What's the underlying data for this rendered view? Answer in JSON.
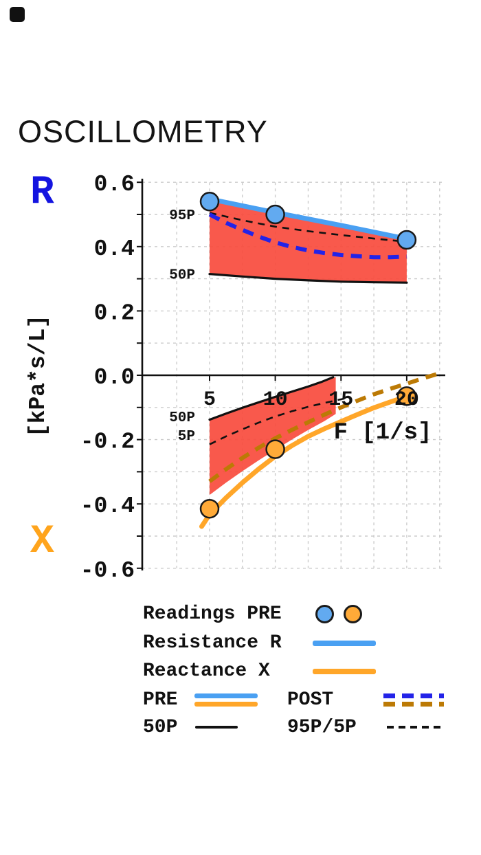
{
  "page": {
    "title": "OSCILLOMETRY"
  },
  "axes": {
    "r_label": "R",
    "x_label": "X",
    "y_unit_label": "[kPa*s/L]",
    "x_axis_label": "F [1/s]"
  },
  "colors": {
    "r_axis": "#1414e0",
    "x_axis": "#ffa41c",
    "r_pre": "#4aa0f2",
    "r_post": "#2323e8",
    "x_pre": "#ffa629",
    "x_post": "#bc7a05",
    "band": "#f94b3d",
    "normal_line": "#111111",
    "marker_r": "#62aaf0",
    "marker_x": "#ffaa38",
    "grid": "#cbcbcb"
  },
  "chart_data": {
    "type": "line",
    "title": "OSCILLOMETRY",
    "xlabel": "F [1/s]",
    "ylabel": "[kPa*s/L]",
    "xlim": [
      0,
      23.5
    ],
    "ylim": [
      -0.63,
      0.63
    ],
    "x_ticks": [
      5,
      10,
      15,
      20
    ],
    "x_tick_labels": [
      "5",
      "10",
      "15",
      "20"
    ],
    "y_ticks": [
      0.6,
      0.4,
      0.2,
      0.0,
      -0.2,
      -0.4,
      -0.6
    ],
    "y_tick_labels": [
      "0.6",
      "0.4",
      "0.2",
      "0.0",
      "-0.2",
      "-0.4",
      "-0.6"
    ],
    "grid": {
      "x_start": 2.5,
      "x_end": 22.5,
      "x_step": 2.5,
      "y_start": -0.6,
      "y_end": 0.6,
      "y_step": 0.1
    },
    "marker_radius": 13,
    "series": [
      {
        "id": "r-50p-line",
        "name": "R 50P predicted",
        "color_key": "normal_line",
        "width": 3.2,
        "points": [
          [
            5,
            0.315
          ],
          [
            7.5,
            0.307
          ],
          [
            10,
            0.3
          ],
          [
            12.5,
            0.295
          ],
          [
            15,
            0.291
          ],
          [
            17.5,
            0.289
          ],
          [
            20,
            0.288
          ]
        ]
      },
      {
        "id": "r-95p-line",
        "name": "R 95P predicted",
        "color_key": "normal_line",
        "width": 2.6,
        "dash": "10 8",
        "points": [
          [
            5,
            0.505
          ],
          [
            7.5,
            0.482
          ],
          [
            10,
            0.462
          ],
          [
            12.5,
            0.448
          ],
          [
            15,
            0.436
          ],
          [
            17.5,
            0.425
          ],
          [
            20,
            0.415
          ]
        ]
      },
      {
        "id": "x-50p-line",
        "name": "X 50P predicted",
        "color_key": "normal_line",
        "width": 3.2,
        "points": [
          [
            5,
            -0.138
          ],
          [
            6.25,
            -0.119
          ],
          [
            7.5,
            -0.101
          ],
          [
            8.75,
            -0.084
          ],
          [
            10,
            -0.067
          ],
          [
            11.25,
            -0.051
          ],
          [
            12.5,
            -0.035
          ],
          [
            13.5,
            -0.021
          ],
          [
            14.4,
            -0.006
          ]
        ]
      },
      {
        "id": "x-5p-line",
        "name": "X 5P predicted",
        "color_key": "normal_line",
        "width": 2.6,
        "dash": "10 8",
        "points": [
          [
            5,
            -0.215
          ],
          [
            6.25,
            -0.19
          ],
          [
            7.5,
            -0.168
          ],
          [
            8.75,
            -0.147
          ],
          [
            10,
            -0.128
          ],
          [
            11.25,
            -0.112
          ],
          [
            12.5,
            -0.098
          ],
          [
            13.75,
            -0.086
          ],
          [
            15.3,
            -0.072
          ]
        ]
      },
      {
        "id": "r-pre-line",
        "name": "Resistance R PRE",
        "color_key": "r_pre",
        "width": 7,
        "points": [
          [
            5,
            0.548
          ],
          [
            7.5,
            0.527
          ],
          [
            10,
            0.506
          ],
          [
            12.5,
            0.486
          ],
          [
            15,
            0.466
          ],
          [
            17.5,
            0.445
          ],
          [
            20,
            0.424
          ]
        ]
      },
      {
        "id": "x-pre-line",
        "name": "Reactance X PRE",
        "color_key": "x_pre",
        "width": 7,
        "points": [
          [
            4.4,
            -0.47
          ],
          [
            5,
            -0.433
          ],
          [
            6.25,
            -0.381
          ],
          [
            7.5,
            -0.334
          ],
          [
            8.75,
            -0.291
          ],
          [
            10,
            -0.252
          ],
          [
            11.25,
            -0.219
          ],
          [
            12.5,
            -0.19
          ],
          [
            13.75,
            -0.166
          ],
          [
            15,
            -0.144
          ],
          [
            16.25,
            -0.122
          ],
          [
            17.5,
            -0.101
          ],
          [
            18.75,
            -0.083
          ],
          [
            20,
            -0.066
          ]
        ]
      },
      {
        "id": "r-post-line",
        "name": "Resistance R POST",
        "color_key": "r_post",
        "width": 6,
        "dash": "16 11",
        "points": [
          [
            5,
            0.5
          ],
          [
            6.25,
            0.474
          ],
          [
            7.5,
            0.452
          ],
          [
            8.75,
            0.431
          ],
          [
            10,
            0.413
          ],
          [
            11.25,
            0.399
          ],
          [
            12.5,
            0.388
          ],
          [
            13.75,
            0.38
          ],
          [
            15,
            0.374
          ],
          [
            16.25,
            0.37
          ],
          [
            17.5,
            0.367
          ],
          [
            18.75,
            0.367
          ],
          [
            20,
            0.369
          ]
        ]
      },
      {
        "id": "x-post-line",
        "name": "Reactance X POST",
        "color_key": "x_post",
        "width": 6,
        "dash": "16 11",
        "points": [
          [
            5,
            -0.33
          ],
          [
            6.25,
            -0.292
          ],
          [
            7.5,
            -0.257
          ],
          [
            8.75,
            -0.225
          ],
          [
            10,
            -0.196
          ],
          [
            11.25,
            -0.17
          ],
          [
            12.5,
            -0.146
          ],
          [
            13.75,
            -0.122
          ],
          [
            15,
            -0.1
          ],
          [
            16.25,
            -0.079
          ],
          [
            17.5,
            -0.059
          ],
          [
            18.75,
            -0.042
          ],
          [
            20,
            -0.026
          ],
          [
            21.2,
            -0.01
          ],
          [
            22.4,
            0.005
          ]
        ]
      }
    ],
    "areas": [
      {
        "id": "r-abnormal-band",
        "color_key": "band",
        "opacity": 0.92,
        "upper": [
          [
            5,
            0.548
          ],
          [
            7.5,
            0.527
          ],
          [
            10,
            0.506
          ],
          [
            12.5,
            0.486
          ],
          [
            15,
            0.466
          ],
          [
            17.5,
            0.445
          ],
          [
            20,
            0.424
          ]
        ],
        "lower": [
          [
            5,
            0.315
          ],
          [
            7.5,
            0.307
          ],
          [
            10,
            0.3
          ],
          [
            12.5,
            0.295
          ],
          [
            15,
            0.291
          ],
          [
            17.5,
            0.289
          ],
          [
            20,
            0.288
          ]
        ]
      },
      {
        "id": "x-abnormal-band",
        "color_key": "band",
        "opacity": 0.92,
        "upper": [
          [
            5,
            -0.135
          ],
          [
            6.25,
            -0.117
          ],
          [
            7.5,
            -0.099
          ],
          [
            8.75,
            -0.082
          ],
          [
            10,
            -0.065
          ],
          [
            11.25,
            -0.049
          ],
          [
            12.5,
            -0.033
          ],
          [
            13.75,
            -0.017
          ],
          [
            14.6,
            -0.006
          ]
        ],
        "lower": [
          [
            5,
            -0.372
          ],
          [
            6.25,
            -0.334
          ],
          [
            7.5,
            -0.298
          ],
          [
            8.75,
            -0.264
          ],
          [
            10,
            -0.232
          ],
          [
            11.25,
            -0.2
          ],
          [
            12.5,
            -0.17
          ],
          [
            13.75,
            -0.142
          ],
          [
            14.6,
            -0.12
          ]
        ]
      }
    ],
    "markers": [
      {
        "series": "r-pre",
        "color_key": "marker_r",
        "x": 5,
        "y": 0.54
      },
      {
        "series": "r-pre",
        "color_key": "marker_r",
        "x": 10,
        "y": 0.5
      },
      {
        "series": "r-pre",
        "color_key": "marker_r",
        "x": 20,
        "y": 0.421
      },
      {
        "series": "x-pre",
        "color_key": "marker_x",
        "x": 5,
        "y": -0.415
      },
      {
        "series": "x-pre",
        "color_key": "marker_x",
        "x": 10,
        "y": -0.23
      },
      {
        "series": "x-pre",
        "color_key": "marker_x",
        "x": 20,
        "y": -0.065
      }
    ],
    "curve_labels": [
      {
        "text": "95P",
        "x": 3.9,
        "y": 0.5
      },
      {
        "text": "50P",
        "x": 3.9,
        "y": 0.315
      },
      {
        "text": "50P",
        "x": 3.9,
        "y": -0.128
      },
      {
        "text": "5P",
        "x": 3.9,
        "y": -0.186
      }
    ]
  },
  "legend": {
    "readings": "Readings PRE",
    "resistance": "Resistance R",
    "reactance": "Reactance X",
    "pre": "PRE",
    "post": "POST",
    "p50": "50P",
    "p95": "95P/5P"
  }
}
